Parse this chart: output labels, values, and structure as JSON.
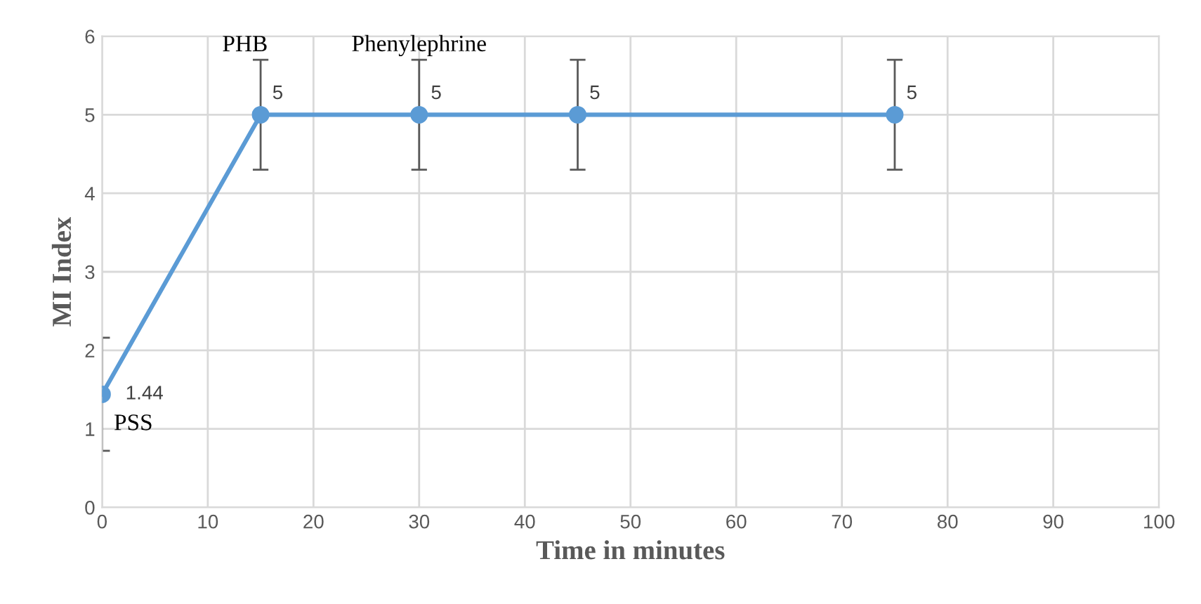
{
  "chart_data": {
    "type": "line",
    "xlabel": "Time in minutes",
    "ylabel": "MI Index",
    "x": [
      0,
      15,
      30,
      45,
      75
    ],
    "series": [
      {
        "color": "#5b9bd5",
        "values": [
          1.44,
          5,
          5,
          5,
          5
        ],
        "errors": [
          0.72,
          0.7,
          0.7,
          0.7,
          0.7
        ]
      }
    ],
    "data_labels": true,
    "marker": "circle",
    "line_style": "solid",
    "grid": true,
    "xlim": [
      0,
      100
    ],
    "xticks": [
      0,
      10,
      20,
      30,
      40,
      50,
      60,
      70,
      80,
      90,
      100
    ],
    "ylim": [
      0,
      6
    ],
    "yticks": [
      0,
      1,
      2,
      3,
      4,
      5,
      6
    ],
    "annotations": [
      {
        "text": "PSS",
        "x": 0,
        "y": 1.44
      },
      {
        "text": "PHB",
        "x": 15,
        "y": 5
      },
      {
        "text": "Phenylephrine",
        "x": 30,
        "y": 5
      }
    ]
  }
}
